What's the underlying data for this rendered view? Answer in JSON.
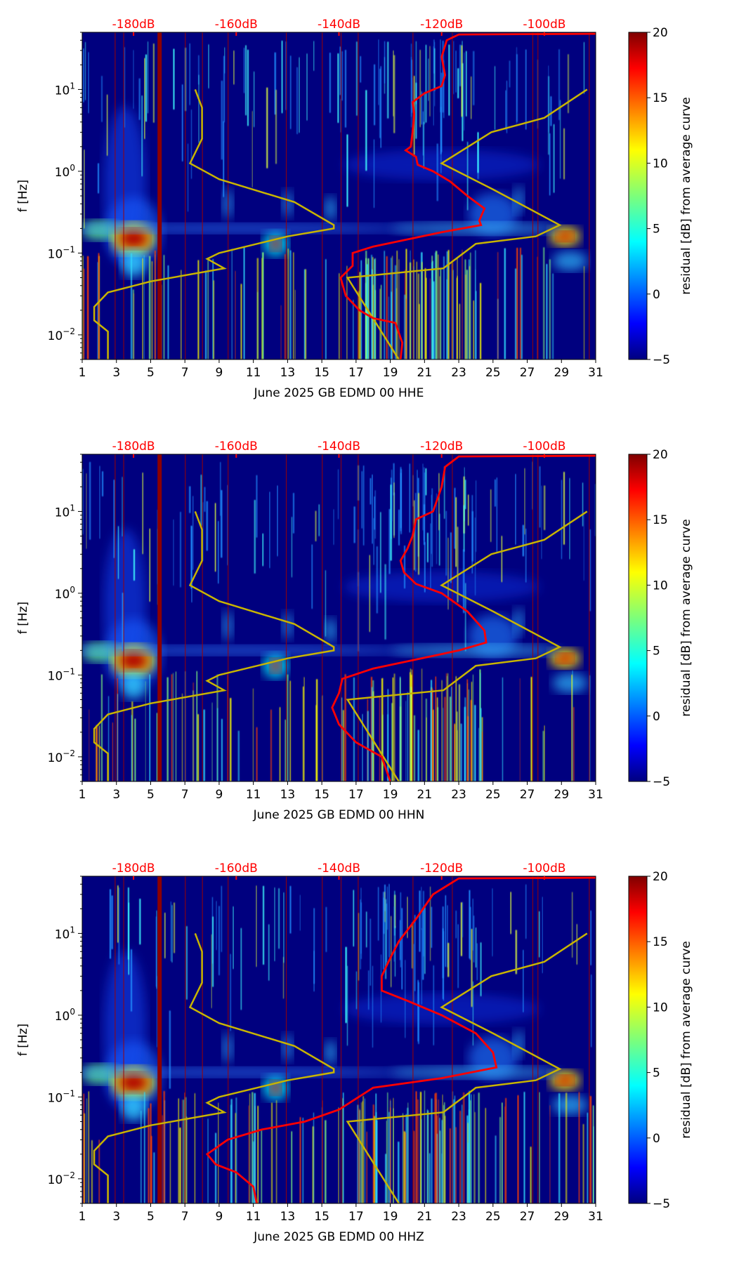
{
  "chart_data": [
    {
      "type": "heatmap",
      "xlabel": "June 2025 GB EDMD 00 HHE",
      "ylabel": "f [Hz]",
      "colorbar_label": "residual [dB] from average curve",
      "red_curve": [
        [
          31,
          48
        ],
        [
          23,
          47
        ],
        [
          22.3,
          40
        ],
        [
          22,
          25
        ],
        [
          22.2,
          15
        ],
        [
          22,
          11
        ],
        [
          21,
          9
        ],
        [
          20.3,
          7
        ],
        [
          20.4,
          5
        ],
        [
          20.3,
          3
        ],
        [
          20.2,
          2
        ],
        [
          19.9,
          1.8
        ],
        [
          20.5,
          1.5
        ],
        [
          20.6,
          1.2
        ],
        [
          21.5,
          1.0
        ],
        [
          22.5,
          0.75
        ],
        [
          23.5,
          0.5
        ],
        [
          24.5,
          0.35
        ],
        [
          24.2,
          0.25
        ],
        [
          24.3,
          0.22
        ],
        [
          22,
          0.18
        ],
        [
          18,
          0.12
        ],
        [
          16.8,
          0.1
        ],
        [
          16.8,
          0.07
        ],
        [
          16.1,
          0.05
        ],
        [
          16.4,
          0.03
        ],
        [
          17.2,
          0.02
        ],
        [
          18,
          0.016
        ],
        [
          19.3,
          0.014
        ],
        [
          19.7,
          0.008
        ],
        [
          19.6,
          0.005
        ]
      ]
    },
    {
      "type": "heatmap",
      "xlabel": "June 2025 GB EDMD 00 HHN",
      "ylabel": "f [Hz]",
      "colorbar_label": "residual [dB] from average curve",
      "red_curve": [
        [
          31,
          48
        ],
        [
          23,
          47
        ],
        [
          22.2,
          35
        ],
        [
          22,
          20
        ],
        [
          21.5,
          10
        ],
        [
          20.5,
          8
        ],
        [
          20.3,
          5
        ],
        [
          20,
          3.5
        ],
        [
          19.6,
          2.5
        ],
        [
          19.8,
          1.8
        ],
        [
          20.5,
          1.3
        ],
        [
          22,
          1
        ],
        [
          23.5,
          0.6
        ],
        [
          24.5,
          0.35
        ],
        [
          24.6,
          0.25
        ],
        [
          23,
          0.2
        ],
        [
          18,
          0.12
        ],
        [
          16.2,
          0.09
        ],
        [
          16,
          0.06
        ],
        [
          15.6,
          0.04
        ],
        [
          16,
          0.025
        ],
        [
          17,
          0.015
        ],
        [
          18.5,
          0.01
        ],
        [
          19,
          0.005
        ]
      ]
    },
    {
      "type": "heatmap",
      "xlabel": "June 2025 GB EDMD 00 HHZ",
      "ylabel": "f [Hz]",
      "colorbar_label": "residual [dB] from average curve",
      "red_curve": [
        [
          31,
          48
        ],
        [
          23,
          47
        ],
        [
          21.5,
          30
        ],
        [
          20.5,
          15
        ],
        [
          19.5,
          8
        ],
        [
          19,
          5
        ],
        [
          18.5,
          3
        ],
        [
          18.5,
          2
        ],
        [
          20,
          1.5
        ],
        [
          22,
          1
        ],
        [
          24,
          0.6
        ],
        [
          25,
          0.35
        ],
        [
          25.2,
          0.23
        ],
        [
          22,
          0.17
        ],
        [
          18,
          0.13
        ],
        [
          16,
          0.07
        ],
        [
          14,
          0.05
        ],
        [
          11.5,
          0.04
        ],
        [
          9.5,
          0.03
        ],
        [
          8.3,
          0.02
        ],
        [
          8.8,
          0.015
        ],
        [
          10,
          0.012
        ],
        [
          11,
          0.008
        ],
        [
          11.2,
          0.005
        ]
      ]
    }
  ],
  "shared": {
    "x_ticks": [
      "1",
      "3",
      "5",
      "7",
      "9",
      "11",
      "13",
      "15",
      "17",
      "19",
      "21",
      "23",
      "25",
      "27",
      "29",
      "31"
    ],
    "x_range_days": [
      1,
      31
    ],
    "y_range_hz": [
      0.005,
      50
    ],
    "y_ticks": [
      {
        "base": "10",
        "exp": "1",
        "value": 10
      },
      {
        "base": "10",
        "exp": "0",
        "value": 1
      },
      {
        "base": "10",
        "exp": "−1",
        "value": 0.1
      },
      {
        "base": "10",
        "exp": "−2",
        "value": 0.01
      }
    ],
    "top_ticks": [
      {
        "label": "-180dB",
        "day": 4
      },
      {
        "label": "-160dB",
        "day": 10
      },
      {
        "label": "-140dB",
        "day": 16
      },
      {
        "label": "-120dB",
        "day": 22
      },
      {
        "label": "-100dB",
        "day": 28
      }
    ],
    "colorbar_ticks": [
      "20",
      "15",
      "10",
      "5",
      "0",
      "−5"
    ],
    "colorbar_range": [
      -5,
      20
    ],
    "noise_model_low": [
      [
        7.6,
        10
      ],
      [
        8,
        6
      ],
      [
        8,
        2.5
      ],
      [
        7.3,
        1.25
      ],
      [
        9,
        0.8
      ],
      [
        13.4,
        0.42
      ],
      [
        15.7,
        0.22
      ],
      [
        15.7,
        0.2
      ],
      [
        13,
        0.16
      ],
      [
        9,
        0.1
      ],
      [
        8.3,
        0.085
      ],
      [
        9.3,
        0.065
      ],
      [
        5,
        0.045
      ],
      [
        2.5,
        0.033
      ],
      [
        1.7,
        0.022
      ],
      [
        1.7,
        0.015
      ],
      [
        2.5,
        0.011
      ],
      [
        2.5,
        0.005
      ]
    ],
    "noise_model_high": [
      [
        30.5,
        10
      ],
      [
        28,
        4.5
      ],
      [
        24.9,
        3
      ],
      [
        22,
        1.25
      ],
      [
        25,
        0.6
      ],
      [
        28.9,
        0.22
      ],
      [
        27.5,
        0.16
      ],
      [
        24,
        0.13
      ],
      [
        22.1,
        0.065
      ],
      [
        16.5,
        0.05
      ],
      [
        19.5,
        0.005
      ]
    ],
    "colors": {
      "red_curve": "#ff0000",
      "noise_model": "#c8b400",
      "background": "#00007f"
    }
  }
}
